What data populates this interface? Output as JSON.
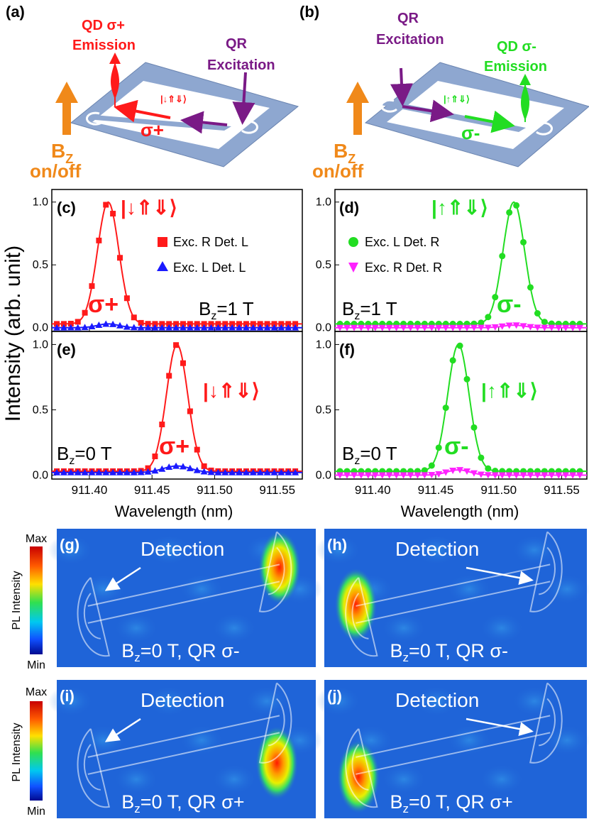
{
  "colors": {
    "red": "#ff1a1a",
    "blue": "#1a1aff",
    "green": "#22dd22",
    "magenta": "#ff22ff",
    "purple": "#7a1a86",
    "orange": "#f0891a",
    "slab": "#8ea7d0",
    "heatBg": "#1f64d8"
  },
  "panel_a": {
    "tag": "(a)",
    "emission_line1": "QD σ+",
    "emission_line2": "Emission",
    "excitation_line1": "QR",
    "excitation_line2": "Excitation",
    "state": "|↓⇑⇓⟩",
    "pol": "σ+",
    "field_line1": "B",
    "field_sub": "Z",
    "field_line2": "on/off"
  },
  "panel_b": {
    "tag": "(b)",
    "excitation_line1": "QR",
    "excitation_line2": "Excitation",
    "emission_line1": "QD σ-",
    "emission_line2": "Emission",
    "state": "|↑⇑⇓⟩",
    "pol": "σ-",
    "field_line1": "B",
    "field_sub": "Z",
    "field_line2": "on/off"
  },
  "axes": {
    "ylabel": "Intensity (arb. unit)",
    "xlabel": "Wavelength (nm)",
    "xticks": [
      "911.40",
      "911.45",
      "911.50",
      "911.55"
    ],
    "yticks": [
      "0.0",
      "0.5",
      "1.0"
    ]
  },
  "panel_c": {
    "tag": "(c)",
    "state": "|↓⇑⇓⟩",
    "pol": "σ+",
    "field": "B",
    "field_sub": "z",
    "field_val": "=1 T",
    "legend1": "Exc. R Det. L",
    "legend2": "Exc. L Det. L"
  },
  "panel_d": {
    "tag": "(d)",
    "state": "|↑⇑⇓⟩",
    "pol": "σ-",
    "field": "B",
    "field_sub": "z",
    "field_val": "=1 T",
    "legend1": "Exc. L Det. R",
    "legend2": "Exc. R Det. R"
  },
  "panel_e": {
    "tag": "(e)",
    "state": "|↓⇑⇓⟩",
    "pol": "σ+",
    "field": "B",
    "field_sub": "z",
    "field_val": "=0 T"
  },
  "panel_f": {
    "tag": "(f)",
    "state": "|↑⇑⇓⟩",
    "pol": "σ-",
    "field": "B",
    "field_sub": "z",
    "field_val": "=0 T"
  },
  "chart_data": [
    {
      "panel": "c",
      "type": "line",
      "xlabel": "Wavelength (nm)",
      "ylabel": "Intensity (arb. unit)",
      "xlim": [
        911.37,
        911.57
      ],
      "ylim": [
        -0.03,
        1.1
      ],
      "series": [
        {
          "name": "Exc. R Det. L",
          "color": "#ff1a1a",
          "marker": "square",
          "peak": 911.415,
          "width": 0.0085,
          "amp": 0.97,
          "base": 0.03
        },
        {
          "name": "Exc. L Det. L",
          "color": "#1a1aff",
          "marker": "triangle",
          "peak": 911.415,
          "width": 0.0085,
          "amp": 0.03,
          "base": 0.0
        }
      ]
    },
    {
      "panel": "d",
      "type": "line",
      "xlabel": "Wavelength (nm)",
      "ylabel": "Intensity (arb. unit)",
      "xlim": [
        911.37,
        911.57
      ],
      "ylim": [
        -0.03,
        1.1
      ],
      "series": [
        {
          "name": "Exc. L Det. R",
          "color": "#22dd22",
          "marker": "circle",
          "peak": 911.512,
          "width": 0.0085,
          "amp": 0.97,
          "base": 0.03
        },
        {
          "name": "Exc. R Det. R",
          "color": "#ff22ff",
          "marker": "triangle-down",
          "peak": 911.512,
          "width": 0.0085,
          "amp": 0.02,
          "base": 0.0
        }
      ]
    },
    {
      "panel": "e",
      "type": "line",
      "xlabel": "Wavelength (nm)",
      "ylabel": "Intensity (arb. unit)",
      "xlim": [
        911.37,
        911.57
      ],
      "ylim": [
        -0.03,
        1.1
      ],
      "series": [
        {
          "name": "Exc. R Det. L",
          "color": "#ff1a1a",
          "marker": "square",
          "peak": 911.47,
          "width": 0.0085,
          "amp": 0.97,
          "base": 0.03
        },
        {
          "name": "Exc. L Det. L",
          "color": "#1a1aff",
          "marker": "triangle",
          "peak": 911.47,
          "width": 0.011,
          "amp": 0.05,
          "base": 0.02
        }
      ]
    },
    {
      "panel": "f",
      "type": "line",
      "xlabel": "Wavelength (nm)",
      "ylabel": "Intensity (arb. unit)",
      "xlim": [
        911.37,
        911.57
      ],
      "ylim": [
        -0.03,
        1.1
      ],
      "series": [
        {
          "name": "Exc. L Det. R",
          "color": "#22dd22",
          "marker": "circle",
          "peak": 911.468,
          "width": 0.0085,
          "amp": 0.97,
          "base": 0.03
        },
        {
          "name": "Exc. R Det. R",
          "color": "#ff22ff",
          "marker": "triangle-down",
          "peak": 911.468,
          "width": 0.009,
          "amp": 0.04,
          "base": 0.0
        }
      ]
    }
  ],
  "maps": {
    "colorbar": {
      "label": "PL Intensity",
      "max": "Max",
      "min": "Min"
    },
    "detection": "Detection",
    "g": {
      "tag": "(g)",
      "field": "B",
      "field_sub": "z",
      "field_val": "=0 T, QR σ-"
    },
    "h": {
      "tag": "(h)",
      "field": "B",
      "field_sub": "z",
      "field_val": "=0 T, QR σ-"
    },
    "i": {
      "tag": "(i)",
      "field": "B",
      "field_sub": "z",
      "field_val": "=0 T, QR σ+"
    },
    "j": {
      "tag": "(j)",
      "field": "B",
      "field_sub": "z",
      "field_val": "=0 T, QR σ+"
    }
  }
}
